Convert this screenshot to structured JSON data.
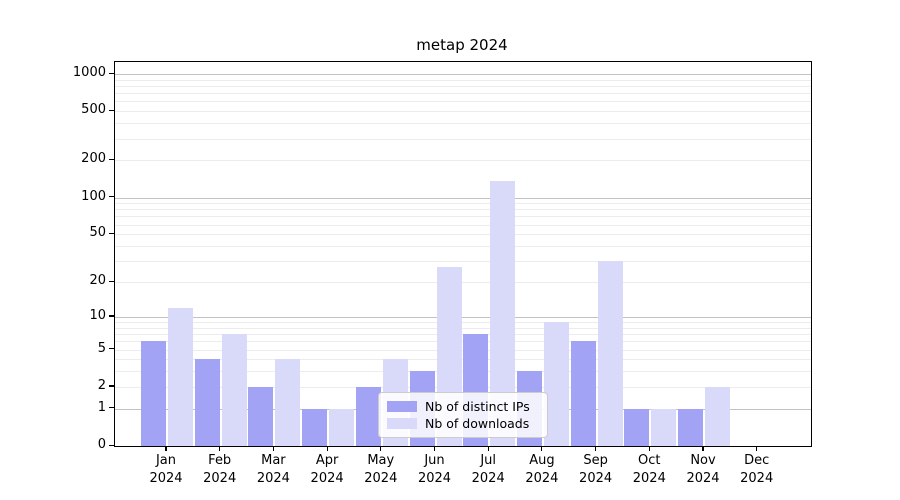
{
  "title": "metap 2024",
  "legend": {
    "items": [
      {
        "label": "Nb of distinct IPs",
        "color": "#a3a3f5"
      },
      {
        "label": "Nb of downloads",
        "color": "#d9d9fa"
      }
    ]
  },
  "chart_data": {
    "type": "bar",
    "title": "metap 2024",
    "categories": [
      "Jan 2024",
      "Feb 2024",
      "Mar 2024",
      "Apr 2024",
      "May 2024",
      "Jun 2024",
      "Jul 2024",
      "Aug 2024",
      "Sep 2024",
      "Oct 2024",
      "Nov 2024",
      "Dec 2024"
    ],
    "series": [
      {
        "name": "Nb of distinct IPs",
        "color": "#a3a3f5",
        "values": [
          6,
          4,
          2,
          1,
          2,
          3,
          7,
          3,
          6,
          1,
          1,
          0
        ]
      },
      {
        "name": "Nb of downloads",
        "color": "#d9d9fa",
        "values": [
          12,
          7,
          4,
          1,
          4,
          27,
          136,
          9,
          30,
          1,
          2,
          0
        ]
      }
    ],
    "yscale": "log10(1+v)",
    "ylim": [
      0,
      1250
    ],
    "y_ticks_labeled": [
      0,
      1,
      2,
      5,
      10,
      20,
      50,
      100,
      200,
      500,
      1000
    ],
    "y_grid_major": [
      1,
      10,
      100,
      1000
    ],
    "y_grid_minor": [
      2,
      3,
      4,
      5,
      6,
      7,
      8,
      9,
      20,
      30,
      40,
      50,
      60,
      70,
      80,
      90,
      200,
      300,
      400,
      500,
      600,
      700,
      800,
      900
    ],
    "grid": true,
    "legend_position": "lower center inside axes",
    "colors": {
      "grid_major": "#c2c2c2",
      "grid_minor": "#ececec",
      "axis": "#000000",
      "text": "#000000"
    }
  }
}
